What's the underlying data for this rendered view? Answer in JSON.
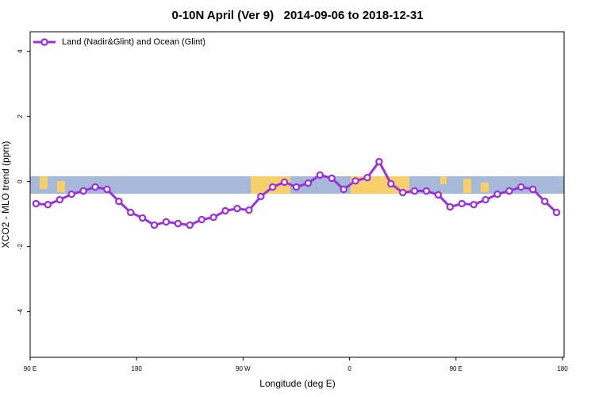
{
  "chart_data": {
    "type": "line",
    "title": "0-10N April (Ver 9)   2014-09-06 to 2018-12-31",
    "x_label": "Longitude (deg E)",
    "y_label": "XCO2 - MLO trend (ppm)",
    "legend_position": "top-left",
    "x": [
      95,
      105,
      115,
      125,
      135,
      145,
      155,
      165,
      175,
      185,
      195,
      205,
      215,
      225,
      235,
      245,
      255,
      265,
      275,
      285,
      295,
      305,
      315,
      325,
      335,
      345,
      355,
      365,
      375,
      385,
      395,
      405,
      415,
      425,
      435,
      445,
      455,
      465,
      475,
      485,
      495,
      505,
      515,
      525,
      535
    ],
    "series": [
      {
        "name": "Land (Nadir&Glint) and Ocean (Glint)",
        "color": "#9a2fe0",
        "values": [
          -0.68,
          -0.71,
          -0.56,
          -0.39,
          -0.29,
          -0.17,
          -0.24,
          -0.61,
          -0.95,
          -1.12,
          -1.34,
          -1.24,
          -1.29,
          -1.34,
          -1.17,
          -1.1,
          -0.9,
          -0.83,
          -0.88,
          -0.46,
          -0.17,
          -0.02,
          -0.17,
          -0.05,
          0.2,
          0.1,
          -0.24,
          0.02,
          0.12,
          0.61,
          -0.07,
          -0.34,
          -0.29,
          -0.29,
          -0.41,
          -0.78,
          -0.68,
          -0.71,
          -0.56,
          -0.39,
          -0.29,
          -0.17,
          -0.24,
          -0.61,
          -0.95
        ]
      }
    ],
    "xlim": [
      90,
      540
    ],
    "xticks": [
      {
        "value": 90,
        "label": "90 E"
      },
      180,
      {
        "value": 270,
        "label": "90 W"
      },
      {
        "value": 360,
        "label": "0"
      },
      {
        "value": 450,
        "label": "90 E"
      },
      {
        "value": 540,
        "label": "180"
      }
    ],
    "ylim": [
      -5.4,
      4.6
    ],
    "yticks": [
      -4,
      -2,
      0,
      2,
      4
    ]
  }
}
